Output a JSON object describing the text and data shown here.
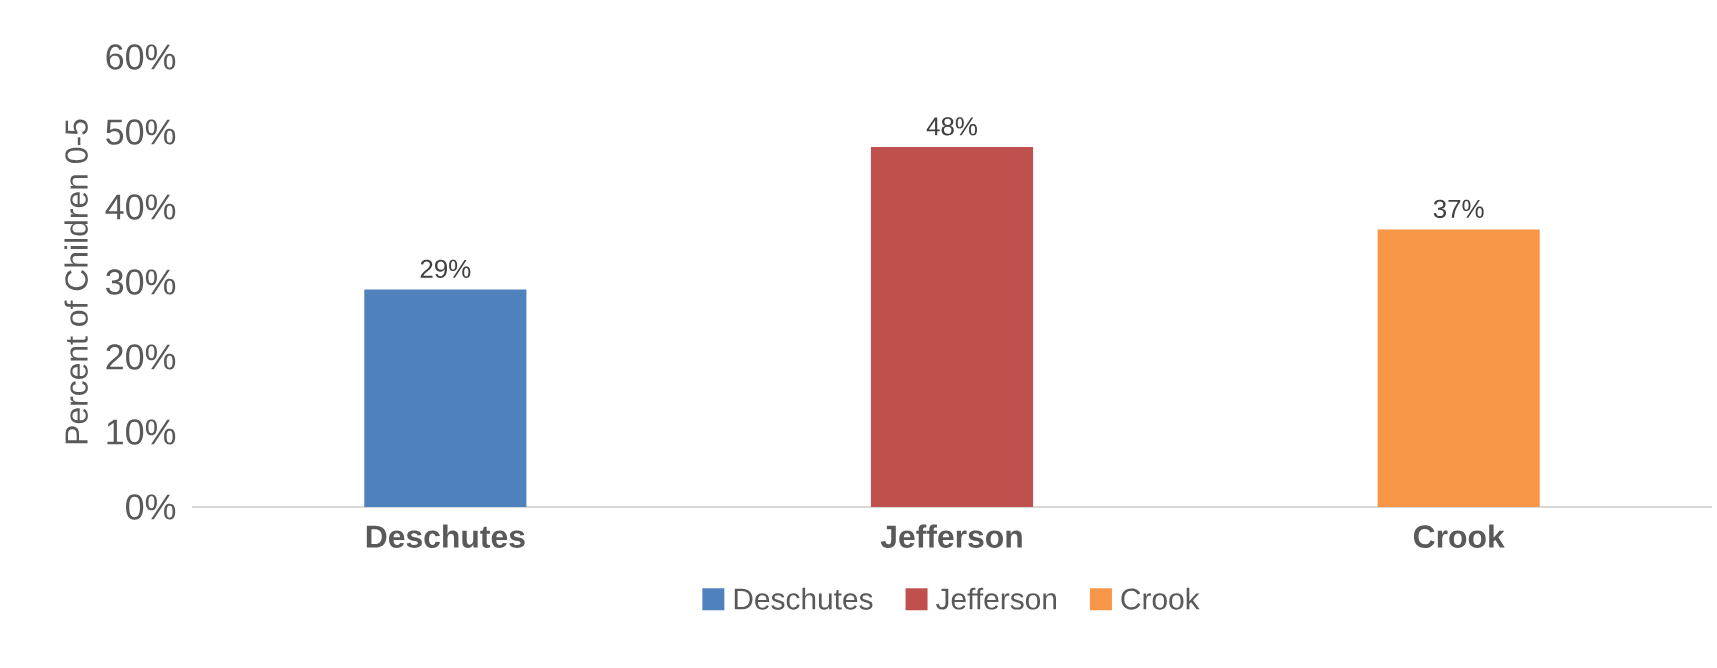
{
  "chart_data": {
    "type": "bar",
    "ylabel": "Percent of Children 0-5",
    "categories": [
      "Deschutes",
      "Jefferson",
      "Crook"
    ],
    "series": [
      {
        "name": "Deschutes",
        "color": "#4f81bd",
        "values": [
          29,
          null,
          null
        ],
        "value_labels": [
          "29%",
          null,
          null
        ]
      },
      {
        "name": "Jefferson",
        "color": "#c0504d",
        "values": [
          null,
          48,
          null
        ],
        "value_labels": [
          null,
          "48%",
          null
        ]
      },
      {
        "name": "Crook",
        "color": "#f79646",
        "values": [
          null,
          null,
          37
        ],
        "value_labels": [
          null,
          null,
          "37%"
        ]
      }
    ],
    "ylim": [
      0,
      60
    ],
    "yticks": [
      {
        "value": 0,
        "label": "0%"
      },
      {
        "value": 10,
        "label": "10%"
      },
      {
        "value": 20,
        "label": "20%"
      },
      {
        "value": 30,
        "label": "30%"
      },
      {
        "value": 40,
        "label": "40%"
      },
      {
        "value": 50,
        "label": "50%"
      },
      {
        "value": 60,
        "label": "60%"
      }
    ],
    "grid": false,
    "legend": "bottom"
  }
}
